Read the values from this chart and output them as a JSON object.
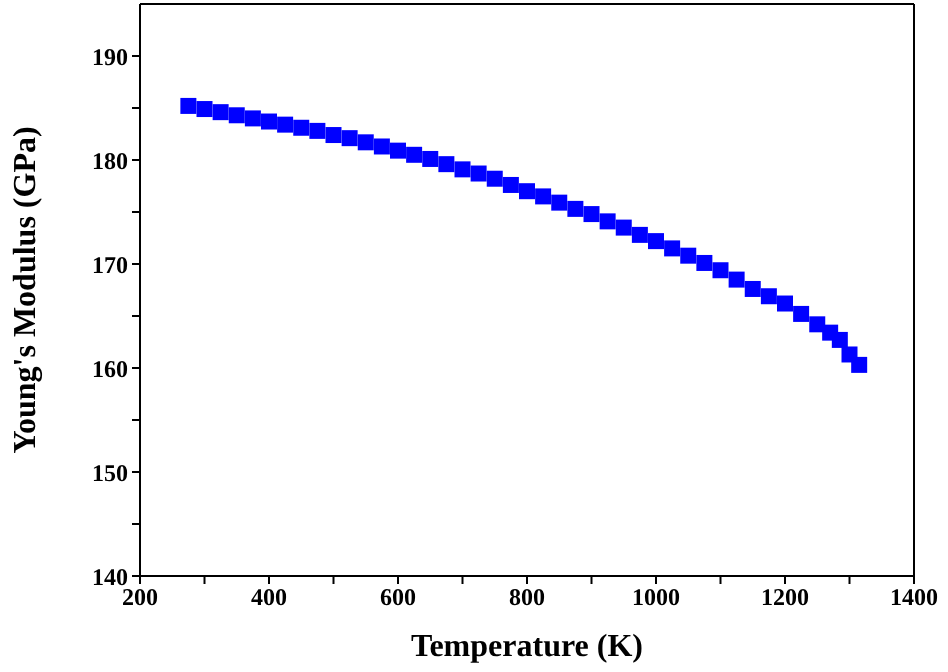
{
  "chart_data": {
    "type": "scatter",
    "xlabel": "Temperature (K)",
    "ylabel": "Young's Modulus (GPa)",
    "x": [
      275,
      300,
      325,
      350,
      375,
      400,
      425,
      450,
      475,
      500,
      525,
      550,
      575,
      600,
      625,
      650,
      675,
      700,
      725,
      750,
      775,
      800,
      825,
      850,
      875,
      900,
      925,
      950,
      975,
      1000,
      1025,
      1050,
      1075,
      1100,
      1125,
      1150,
      1175,
      1200,
      1225,
      1250,
      1270,
      1285,
      1300,
      1315
    ],
    "series": [
      {
        "color": "#0000ff",
        "values": [
          185.2,
          184.9,
          184.6,
          184.3,
          184.0,
          183.7,
          183.4,
          183.1,
          182.8,
          182.4,
          182.1,
          181.7,
          181.3,
          180.9,
          180.5,
          180.1,
          179.6,
          179.1,
          178.7,
          178.2,
          177.6,
          177.0,
          176.5,
          175.9,
          175.3,
          174.8,
          174.1,
          173.5,
          172.8,
          172.2,
          171.5,
          170.8,
          170.1,
          169.4,
          168.5,
          167.6,
          166.9,
          166.2,
          165.2,
          164.2,
          163.4,
          162.7,
          161.3,
          160.3
        ]
      }
    ],
    "marker": "square",
    "xlim": [
      200,
      1400
    ],
    "ylim": [
      140,
      195
    ],
    "xticks": [
      200,
      {
        "value": 300,
        "label": null
      },
      400,
      {
        "value": 500,
        "label": null
      },
      600,
      {
        "value": 700,
        "label": null
      },
      800,
      {
        "value": 900,
        "label": null
      },
      1000,
      {
        "value": 1100,
        "label": null
      },
      1200,
      {
        "value": 1300,
        "label": null
      },
      1400
    ],
    "yticks": [
      140,
      {
        "value": 145,
        "label": null
      },
      150,
      {
        "value": 155,
        "label": null
      },
      160,
      {
        "value": 165,
        "label": null
      },
      170,
      {
        "value": 175,
        "label": null
      },
      180,
      {
        "value": 185,
        "label": null
      },
      190
    ],
    "tick_labels": "xy"
  }
}
